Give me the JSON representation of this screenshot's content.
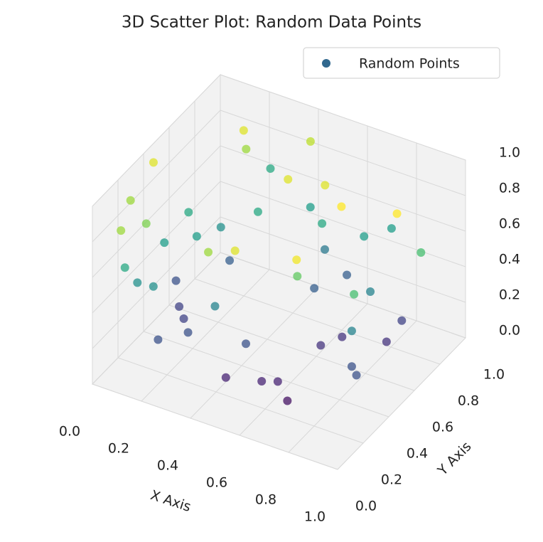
{
  "chart_data": {
    "type": "scatter3d",
    "title": "3D Scatter Plot: Random Data Points",
    "xlabel": "X Axis",
    "ylabel": "Y Axis",
    "series_name": "Random Points",
    "legend_color": "#31688e",
    "colormap": "viridis",
    "grid": true,
    "xlim": [
      0,
      1
    ],
    "ylim": [
      0,
      1
    ],
    "zlim": [
      0,
      1
    ],
    "xticks": [
      {
        "value": 0,
        "label": "0.0"
      },
      0.2,
      0.4,
      0.6,
      0.8,
      {
        "value": 1,
        "label": "1.0"
      }
    ],
    "yticks": [
      {
        "value": 0,
        "label": "0.0"
      },
      0.2,
      0.4,
      0.6,
      0.8,
      {
        "value": 1,
        "label": "1.0"
      }
    ],
    "zticks": [
      {
        "value": 0,
        "label": "0.0"
      },
      0.2,
      0.4,
      0.6,
      0.8,
      {
        "value": 1,
        "label": "1.0"
      }
    ],
    "x": [
      0.67,
      0.44,
      0.61,
      0.91,
      0.2,
      0.27,
      0.48,
      0.66,
      0.85,
      0.86,
      0.87,
      0.38,
      0.19,
      0.14,
      0.16,
      0.1,
      0.07,
      0.08,
      0.02,
      0.03,
      0.21,
      0.42,
      0.49,
      0.62,
      0.76,
      0.95,
      0.98,
      0.74,
      0.9,
      0.77,
      0.7,
      0.55,
      0.61,
      0.52,
      0.54,
      0.41,
      0.21,
      0.08,
      0.19,
      0.17,
      0.09,
      0.1,
      0.31,
      0.22,
      0.43,
      0.54,
      0.68,
      0.81,
      0.22,
      0.11,
      0.87,
      0.7,
      0.56
    ],
    "y": [
      0.24,
      0.2,
      0.28,
      0.32,
      0.13,
      0.23,
      0.28,
      0.52,
      0.67,
      0.77,
      0.36,
      0.23,
      0.35,
      0.41,
      0.17,
      0.16,
      0.12,
      0.07,
      0.26,
      0.42,
      0.78,
      0.9,
      0.59,
      0.63,
      0.49,
      0.56,
      0.69,
      0.92,
      0.32,
      0.12,
      0.26,
      0.68,
      0.82,
      0.82,
      0.08,
      0.12,
      0.67,
      0.5,
      0.64,
      0.49,
      0.39,
      0.56,
      0.7,
      0.97,
      0.88,
      0.76,
      0.82,
      0.62,
      0.78,
      0.21,
      0.36,
      0.61,
      0.25
    ],
    "z": [
      0.05,
      0.1,
      0.1,
      0.25,
      0.25,
      0.25,
      0.25,
      0.15,
      0.15,
      0.2,
      0.45,
      0.45,
      0.2,
      0.2,
      0.5,
      0.5,
      0.6,
      0.85,
      0.85,
      0.95,
      0.95,
      0.9,
      0.95,
      0.95,
      1,
      1,
      0.7,
      0.55,
      0.7,
      0.98,
      0.75,
      0.3,
      0.3,
      0.4,
      0.95,
      0.85,
      0.3,
      0.25,
      0.5,
      0.55,
      0.55,
      0.6,
      0.6,
      0.6,
      0.55,
      0.6,
      0.55,
      0.45,
      0.85,
      0.8,
      0.25,
      0.15,
      0.1
    ]
  }
}
